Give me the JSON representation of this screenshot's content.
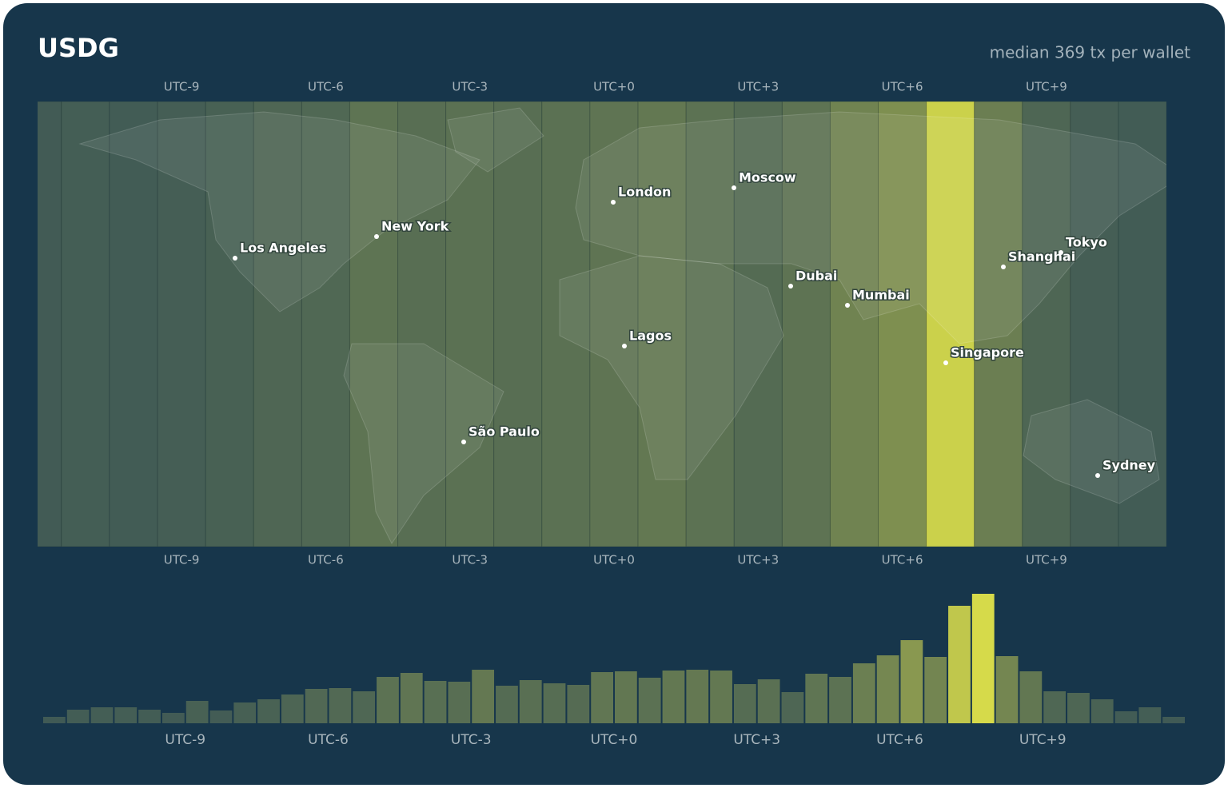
{
  "header": {
    "title": "USDG",
    "subtitle": "median 369 tx per wallet"
  },
  "map": {
    "cities": [
      "Los Angeles",
      "New York",
      "London",
      "Moscow",
      "Dubai",
      "Mumbai",
      "Lagos",
      "Shanghai",
      "Tokyo",
      "Singapore",
      "São Paulo",
      "Sydney"
    ]
  },
  "chart_data": {
    "type": "histogram",
    "bins": [
      -12,
      -11.5,
      -11,
      -10.5,
      -10,
      -9.5,
      -9,
      -8.5,
      -8,
      -7.5,
      -7,
      -6.5,
      -6,
      -5.5,
      -5,
      -4.5,
      -4,
      -3.5,
      -3,
      -2.5,
      -2,
      -1.5,
      -1,
      -0.5,
      0,
      0.5,
      1,
      1.5,
      2,
      2.5,
      3,
      3.5,
      4,
      4.5,
      5,
      5.5,
      6,
      6.5,
      7,
      7.5,
      8,
      8.5,
      9,
      9.5,
      10,
      10.5,
      11,
      11.5,
      12
    ],
    "values": [
      8,
      17,
      20,
      20,
      17,
      13,
      28,
      16,
      26,
      30,
      36,
      43,
      44,
      40,
      58,
      63,
      53,
      52,
      67,
      47,
      54,
      50,
      48,
      64,
      65,
      57,
      66,
      67,
      66,
      49,
      55,
      39,
      62,
      58,
      75,
      85,
      104,
      83,
      147,
      162,
      84,
      65,
      40,
      38,
      30,
      15,
      20,
      8
    ],
    "xlim": [
      -12,
      12
    ],
    "xticks": [
      {
        "value": -9,
        "label": "UTC-9"
      },
      {
        "value": -6,
        "label": "UTC-6"
      },
      {
        "value": -3,
        "label": "UTC-3"
      },
      {
        "value": 0,
        "label": "UTC+0"
      },
      {
        "value": 3,
        "label": "UTC+3"
      },
      {
        "value": 6,
        "label": "UTC+6"
      },
      {
        "value": 9,
        "label": "UTC+9"
      }
    ],
    "color_scale": [
      "#3f5955",
      "#d6da4a"
    ]
  }
}
